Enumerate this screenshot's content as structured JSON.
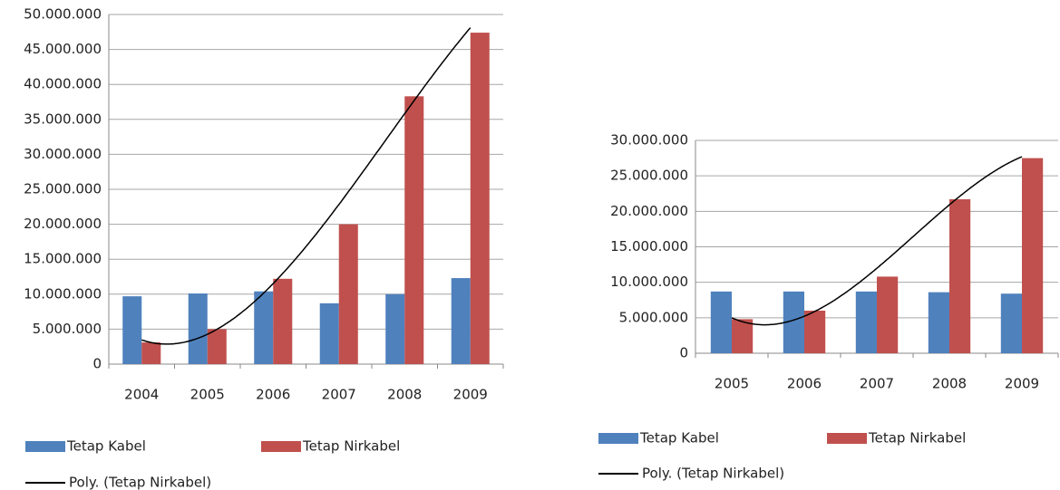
{
  "chart_data": [
    {
      "type": "bar",
      "categories": [
        "2004",
        "2005",
        "2006",
        "2007",
        "2008",
        "2009"
      ],
      "series": [
        {
          "name": "Tetap Kabel",
          "color": "#4f81bd",
          "values": [
            9700000,
            10100000,
            10400000,
            8700000,
            10000000,
            12300000
          ]
        },
        {
          "name": "Tetap Nirkabel",
          "color": "#c0504d",
          "values": [
            3100000,
            5000000,
            12200000,
            20000000,
            38300000,
            47400000
          ]
        }
      ],
      "trendline": {
        "name": "Poly. (Tetap Nirkabel)",
        "series": 1,
        "order": 3,
        "color": "#000000"
      },
      "ylim": [
        0,
        50000000
      ],
      "yticks": [
        0,
        {
          "value": 5000000,
          "label": "5.000.000"
        },
        {
          "value": 10000000,
          "label": "10.000.000"
        },
        {
          "value": 15000000,
          "label": "15.000.000"
        },
        {
          "value": 20000000,
          "label": "20.000.000"
        },
        {
          "value": 25000000,
          "label": "25.000.000"
        },
        {
          "value": 30000000,
          "label": "30.000.000"
        },
        {
          "value": 35000000,
          "label": "35.000.000"
        },
        {
          "value": 40000000,
          "label": "40.000.000"
        },
        {
          "value": 45000000,
          "label": "45.000.000"
        },
        {
          "value": 50000000,
          "label": "50.000.000"
        }
      ],
      "grid": true
    },
    {
      "type": "bar",
      "categories": [
        "2005",
        "2006",
        "2007",
        "2008",
        "2009"
      ],
      "series": [
        {
          "name": "Tetap Kabel",
          "color": "#4f81bd",
          "values": [
            8700000,
            8700000,
            8700000,
            8600000,
            8400000
          ]
        },
        {
          "name": "Tetap Nirkabel",
          "color": "#c0504d",
          "values": [
            4800000,
            6000000,
            10800000,
            21700000,
            27500000
          ]
        }
      ],
      "trendline": {
        "name": "Poly. (Tetap Nirkabel)",
        "series": 1,
        "order": 3,
        "color": "#000000"
      },
      "ylim": [
        0,
        30000000
      ],
      "yticks": [
        0,
        {
          "value": 5000000,
          "label": "5.000.000"
        },
        {
          "value": 10000000,
          "label": "10.000.000"
        },
        {
          "value": 15000000,
          "label": "15.000.000"
        },
        {
          "value": 20000000,
          "label": "20.000.000"
        },
        {
          "value": 25000000,
          "label": "25.000.000"
        },
        {
          "value": 30000000,
          "label": "30.000.000"
        }
      ],
      "grid": true
    }
  ]
}
